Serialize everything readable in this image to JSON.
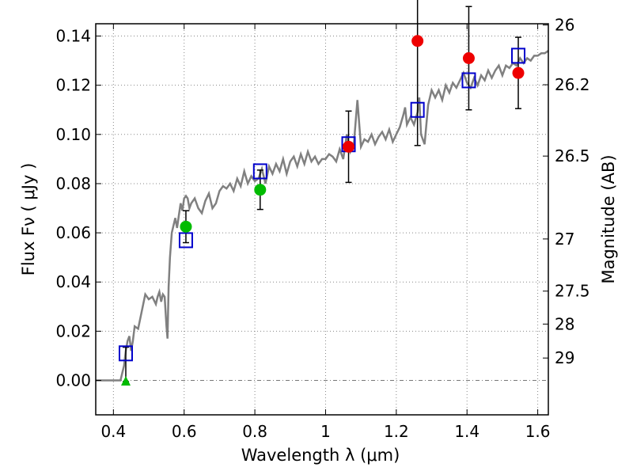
{
  "chart_data": {
    "type": "scatter",
    "xlabel": "Wavelength  λ (μm)",
    "ylabel": "Flux  Fν  ( μJy )",
    "y2label": "Magnitude (AB)",
    "xlim": [
      0.35,
      1.63
    ],
    "ylim": [
      -0.014,
      0.145
    ],
    "xticks": [
      0.4,
      0.6,
      0.8,
      1.0,
      1.2,
      1.4,
      1.6
    ],
    "xtick_labels": [
      "0.4",
      "0.6",
      "0.8",
      "1",
      "1.2",
      "1.4",
      "1.6"
    ],
    "yticks": [
      0.0,
      0.02,
      0.04,
      0.06,
      0.08,
      0.1,
      0.12,
      0.14
    ],
    "ytick_labels": [
      "0.00",
      "0.02",
      "0.04",
      "0.06",
      "0.08",
      "0.10",
      "0.12",
      "0.14"
    ],
    "y2ticks": [
      {
        "label": "26",
        "flux": 0.1445
      },
      {
        "label": "26.2",
        "flux": 0.1202
      },
      {
        "label": "26.5",
        "flux": 0.0912
      },
      {
        "label": "27",
        "flux": 0.0575
      },
      {
        "label": "27.5",
        "flux": 0.0363
      },
      {
        "label": "28",
        "flux": 0.0229
      },
      {
        "label": "29",
        "flux": 0.0091
      }
    ],
    "grid": true,
    "series": [
      {
        "name": "model spectrum",
        "kind": "line",
        "color": "#808080",
        "x": [
          0.35,
          0.41,
          0.42,
          0.425,
          0.43,
          0.435,
          0.44,
          0.445,
          0.45,
          0.455,
          0.46,
          0.47,
          0.48,
          0.49,
          0.5,
          0.51,
          0.52,
          0.525,
          0.53,
          0.535,
          0.54,
          0.545,
          0.55,
          0.553,
          0.556,
          0.56,
          0.565,
          0.57,
          0.575,
          0.58,
          0.585,
          0.59,
          0.595,
          0.6,
          0.605,
          0.61,
          0.615,
          0.62,
          0.63,
          0.64,
          0.65,
          0.66,
          0.67,
          0.68,
          0.69,
          0.7,
          0.71,
          0.72,
          0.73,
          0.74,
          0.75,
          0.76,
          0.77,
          0.78,
          0.79,
          0.8,
          0.81,
          0.82,
          0.83,
          0.84,
          0.85,
          0.86,
          0.87,
          0.88,
          0.89,
          0.9,
          0.91,
          0.92,
          0.93,
          0.94,
          0.95,
          0.96,
          0.97,
          0.98,
          0.99,
          1.0,
          1.01,
          1.02,
          1.03,
          1.04,
          1.05,
          1.06,
          1.07,
          1.08,
          1.09,
          1.1,
          1.11,
          1.12,
          1.13,
          1.14,
          1.15,
          1.16,
          1.17,
          1.18,
          1.19,
          1.2,
          1.21,
          1.22,
          1.225,
          1.23,
          1.24,
          1.25,
          1.26,
          1.265,
          1.27,
          1.28,
          1.29,
          1.3,
          1.31,
          1.32,
          1.33,
          1.34,
          1.35,
          1.36,
          1.37,
          1.38,
          1.39,
          1.4,
          1.41,
          1.42,
          1.43,
          1.44,
          1.45,
          1.46,
          1.47,
          1.48,
          1.49,
          1.5,
          1.51,
          1.52,
          1.53,
          1.54,
          1.55,
          1.56,
          1.57,
          1.58,
          1.59,
          1.6,
          1.61,
          1.62,
          1.63
        ],
        "y": [
          0.0,
          0.0,
          0.0,
          0.003,
          0.006,
          0.012,
          0.016,
          0.018,
          0.012,
          0.016,
          0.022,
          0.021,
          0.028,
          0.035,
          0.033,
          0.034,
          0.031,
          0.034,
          0.036,
          0.032,
          0.035,
          0.034,
          0.022,
          0.017,
          0.038,
          0.05,
          0.06,
          0.063,
          0.066,
          0.062,
          0.067,
          0.072,
          0.069,
          0.074,
          0.075,
          0.074,
          0.07,
          0.072,
          0.074,
          0.07,
          0.068,
          0.073,
          0.076,
          0.07,
          0.072,
          0.077,
          0.079,
          0.078,
          0.08,
          0.077,
          0.082,
          0.079,
          0.085,
          0.08,
          0.083,
          0.081,
          0.082,
          0.086,
          0.08,
          0.087,
          0.084,
          0.088,
          0.085,
          0.09,
          0.084,
          0.089,
          0.091,
          0.087,
          0.092,
          0.088,
          0.093,
          0.089,
          0.091,
          0.088,
          0.09,
          0.09,
          0.092,
          0.091,
          0.089,
          0.094,
          0.09,
          0.1,
          0.093,
          0.096,
          0.114,
          0.095,
          0.098,
          0.097,
          0.1,
          0.096,
          0.099,
          0.101,
          0.098,
          0.102,
          0.097,
          0.1,
          0.103,
          0.108,
          0.111,
          0.104,
          0.107,
          0.104,
          0.109,
          0.115,
          0.1,
          0.096,
          0.112,
          0.118,
          0.115,
          0.118,
          0.114,
          0.12,
          0.117,
          0.121,
          0.119,
          0.122,
          0.125,
          0.121,
          0.119,
          0.123,
          0.12,
          0.124,
          0.122,
          0.126,
          0.123,
          0.126,
          0.128,
          0.124,
          0.128,
          0.127,
          0.129,
          0.128,
          0.131,
          0.129,
          0.131,
          0.13,
          0.132,
          0.132,
          0.133,
          0.133,
          0.134
        ]
      },
      {
        "name": "model fluxes",
        "kind": "open-square",
        "color": "#0000cc",
        "x": [
          0.435,
          0.605,
          0.815,
          1.065,
          1.26,
          1.405,
          1.545
        ],
        "y": [
          0.011,
          0.057,
          0.085,
          0.096,
          0.11,
          0.122,
          0.132
        ]
      },
      {
        "name": "green detections",
        "kind": "circle",
        "color": "#00bb00",
        "x": [
          0.605,
          0.815
        ],
        "y": [
          0.0625,
          0.0775
        ],
        "yerr": [
          0.0065,
          0.008
        ]
      },
      {
        "name": "red detections",
        "kind": "circle",
        "color": "#ee0000",
        "x": [
          1.065,
          1.26,
          1.405,
          1.545
        ],
        "y": [
          0.095,
          0.138,
          0.131,
          0.125
        ],
        "yerr": [
          0.0145,
          0.0425,
          0.021,
          0.0145
        ]
      },
      {
        "name": "upper limit",
        "kind": "triangle",
        "color": "#00bb00",
        "x": [
          0.435
        ],
        "y": [
          -0.0005
        ],
        "err_low": -0.0005,
        "err_high": 0.0135
      }
    ]
  }
}
